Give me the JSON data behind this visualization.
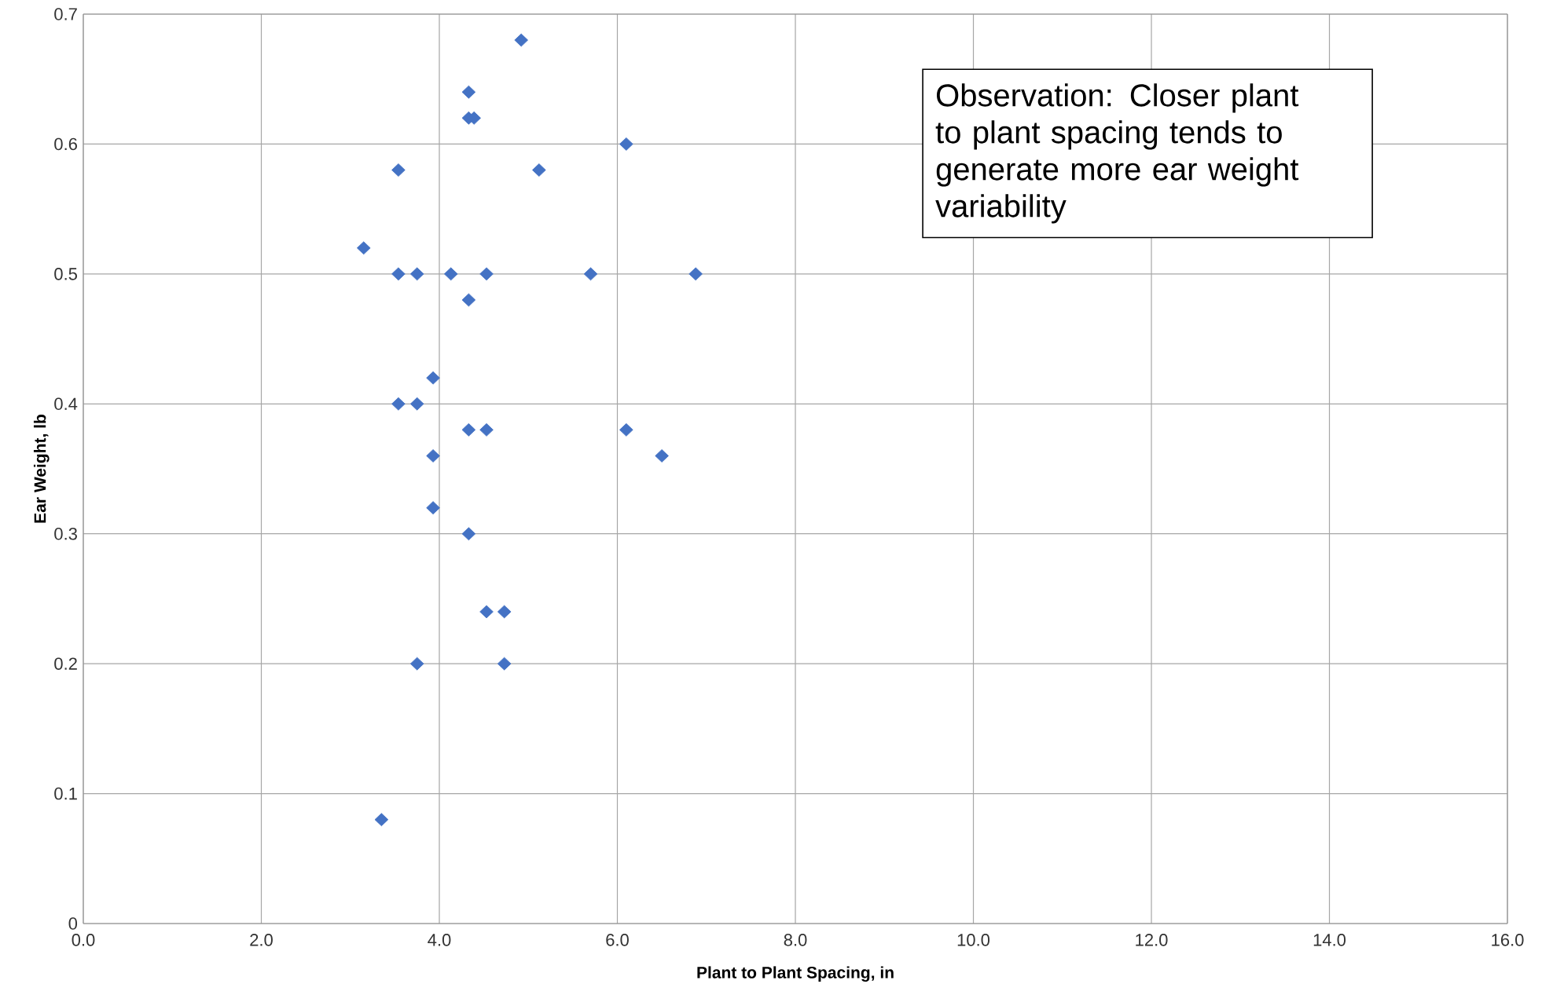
{
  "chart_data": {
    "type": "scatter",
    "xlabel": "Plant to Plant Spacing, in",
    "ylabel": "Ear Weight, lb",
    "annotations": [
      "Observation: Closer plant to plant spacing tends to generate more ear weight variability"
    ],
    "x": [
      4.92,
      4.33,
      4.33,
      4.39,
      6.1,
      3.54,
      5.12,
      3.15,
      3.54,
      3.75,
      4.13,
      4.53,
      5.7,
      6.88,
      4.33,
      3.93,
      3.54,
      3.75,
      4.33,
      4.53,
      6.1,
      3.93,
      6.5,
      3.93,
      4.33,
      4.53,
      4.73,
      3.75,
      4.73,
      3.35
    ],
    "values": [
      0.68,
      0.64,
      0.62,
      0.62,
      0.6,
      0.58,
      0.58,
      0.52,
      0.5,
      0.5,
      0.5,
      0.5,
      0.5,
      0.5,
      0.48,
      0.42,
      0.4,
      0.4,
      0.38,
      0.38,
      0.38,
      0.36,
      0.36,
      0.32,
      0.3,
      0.24,
      0.24,
      0.2,
      0.2,
      0.08
    ],
    "color": "#4472c4",
    "marker": "diamond",
    "grid": true,
    "xlim": [
      0,
      16
    ],
    "ylim": [
      0,
      0.7
    ],
    "xticks": [
      {
        "value": 0,
        "label": "0.0"
      },
      {
        "value": 2,
        "label": "2.0"
      },
      {
        "value": 4,
        "label": "4.0"
      },
      {
        "value": 6,
        "label": "6.0"
      },
      {
        "value": 8,
        "label": "8.0"
      },
      {
        "value": 10,
        "label": "10.0"
      },
      {
        "value": 12,
        "label": "12.0"
      },
      {
        "value": 14,
        "label": "14.0"
      },
      {
        "value": 16,
        "label": "16.0"
      }
    ],
    "yticks": [
      0,
      0.1,
      0.2,
      0.3,
      0.4,
      0.5,
      0.6,
      0.7
    ]
  }
}
